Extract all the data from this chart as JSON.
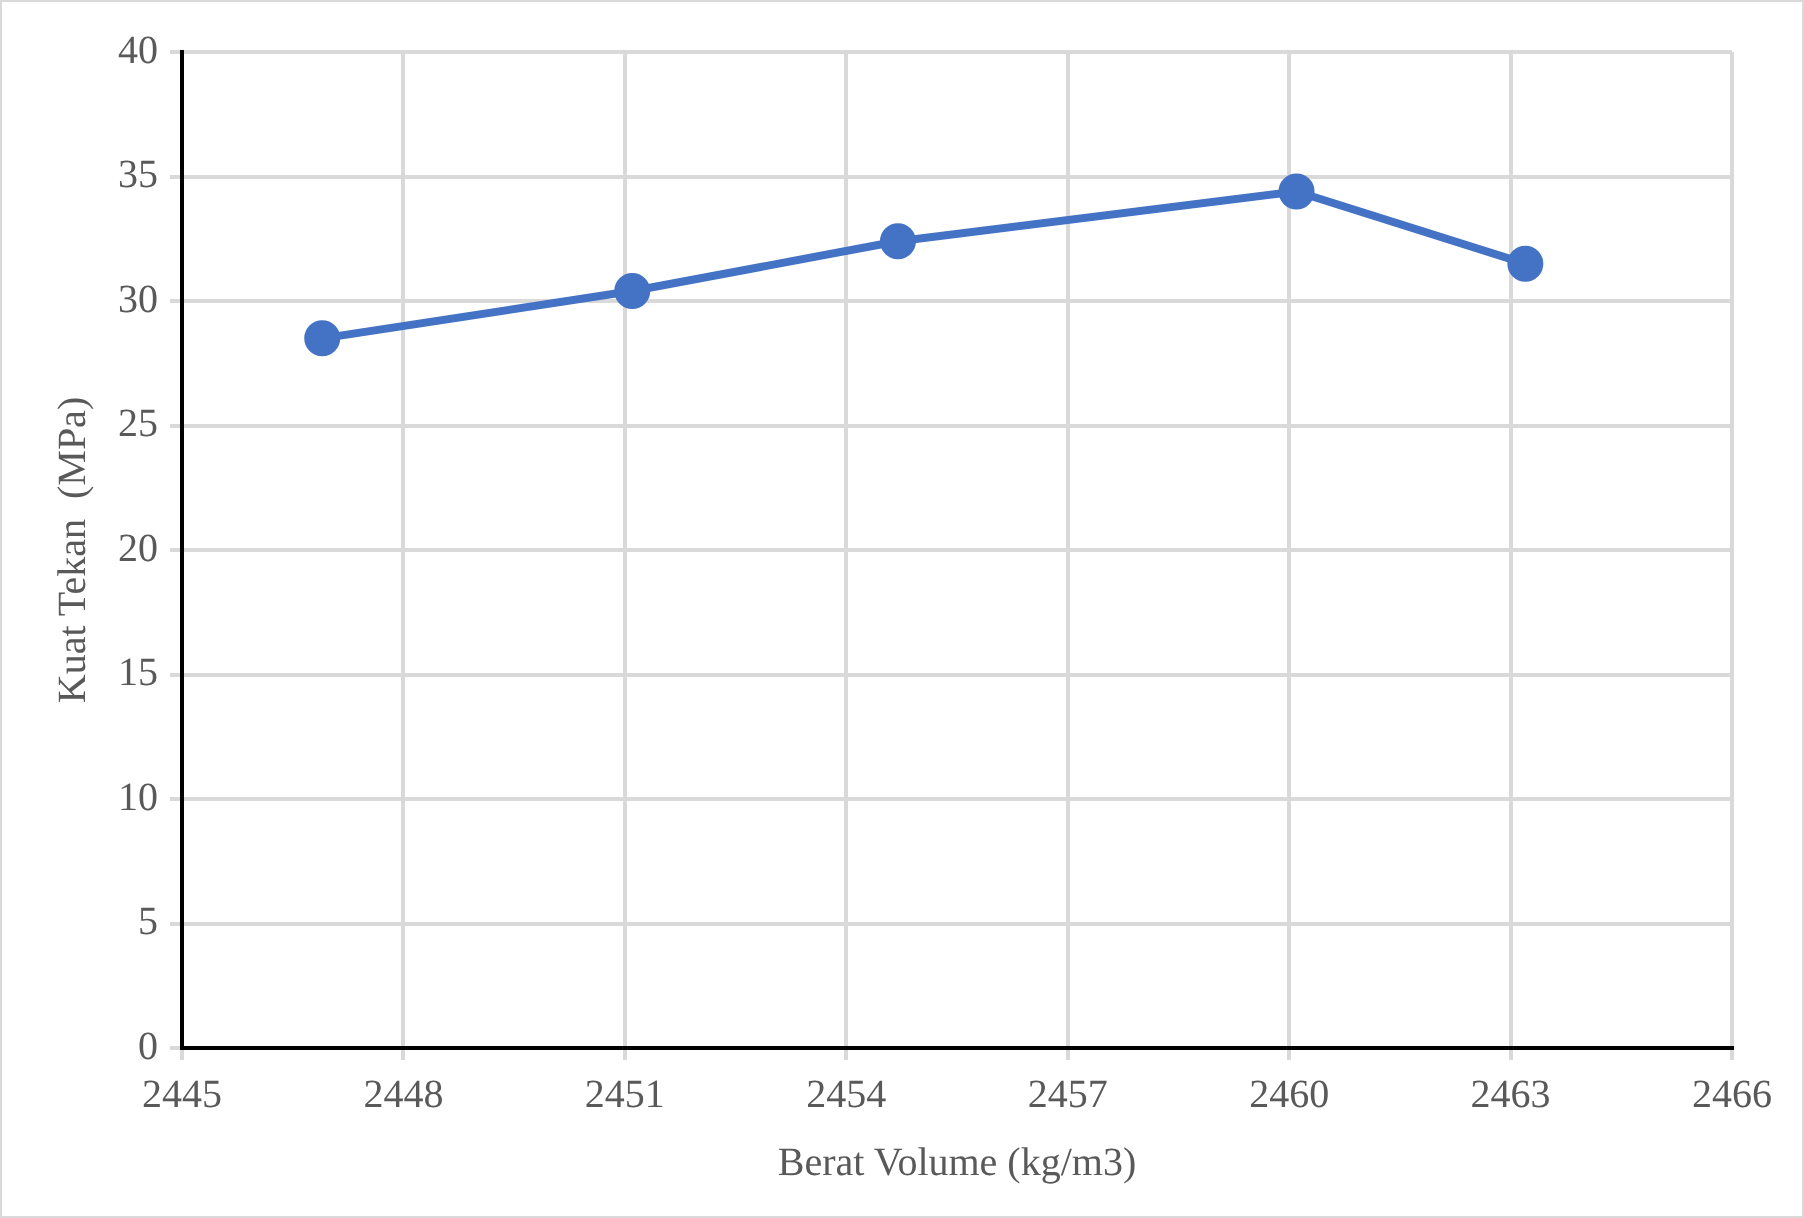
{
  "chart_data": {
    "type": "line",
    "xlabel": "Berat Volume (kg/m3)",
    "ylabel": "Kuat Tekan  (MPa)",
    "x": [
      2446.9,
      2451.1,
      2454.7,
      2460.1,
      2463.2
    ],
    "series": [
      {
        "color": "#4472c4",
        "values": [
          28.5,
          30.4,
          32.4,
          34.4,
          31.5
        ]
      }
    ],
    "xlim": [
      2445,
      2466
    ],
    "xticks": [
      2445,
      2448,
      2451,
      2454,
      2457,
      2460,
      2463,
      2466
    ],
    "ylim": [
      0,
      40
    ],
    "yticks": [
      0,
      5,
      10,
      15,
      20,
      25,
      30,
      35,
      40
    ],
    "grid": true,
    "legend": false,
    "marker": "circle",
    "line_style": "solid"
  }
}
